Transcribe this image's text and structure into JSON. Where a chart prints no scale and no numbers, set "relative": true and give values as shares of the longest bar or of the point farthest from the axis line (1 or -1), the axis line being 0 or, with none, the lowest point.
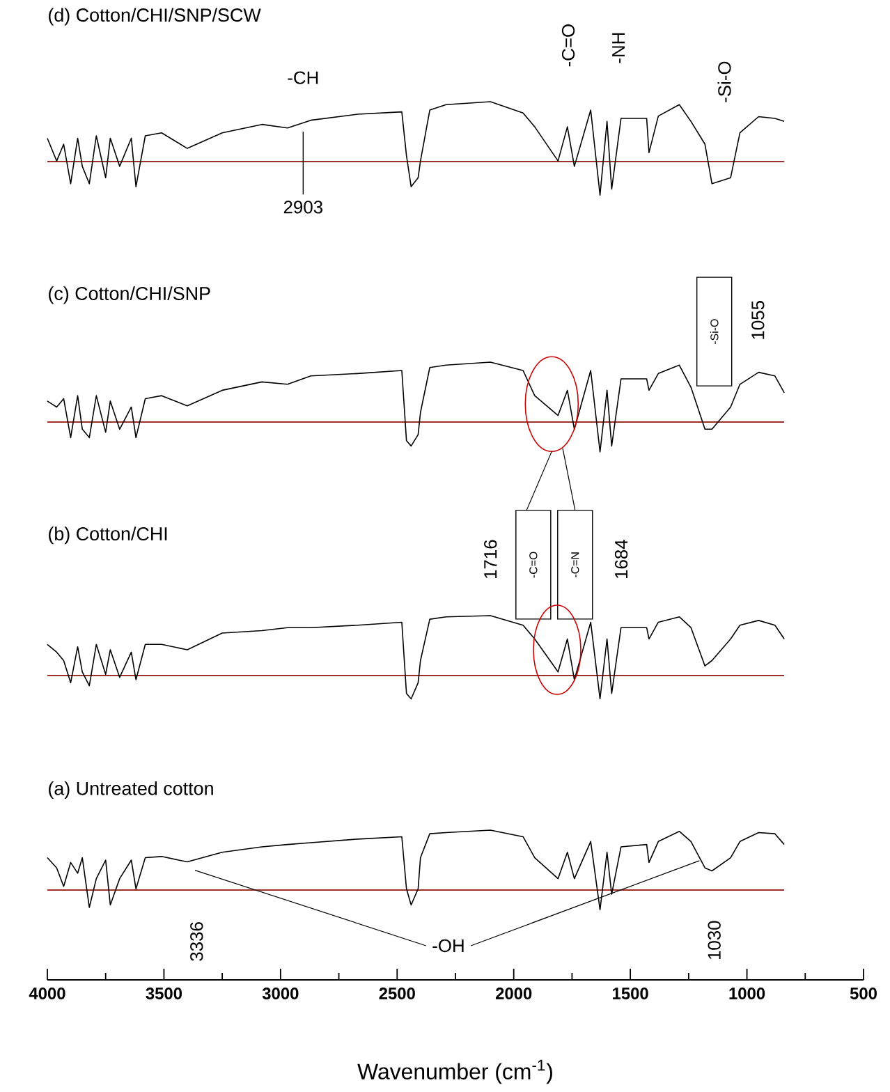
{
  "chart_data": [
    {
      "type": "line",
      "title": "(d) Cotton/CHI/SNP/SCW",
      "relative": true,
      "xlim": [
        4000,
        500
      ],
      "tick_labels": false,
      "color": "#000000",
      "x": [
        4000,
        3960,
        3930,
        3900,
        3870,
        3850,
        3820,
        3790,
        3750,
        3730,
        3690,
        3640,
        3620,
        3580,
        3510,
        3400,
        3250,
        3080,
        2970,
        2870,
        2670,
        2480,
        2460,
        2440,
        2410,
        2400,
        2360,
        2290,
        2100,
        1960,
        1910,
        1810,
        1770,
        1740,
        1670,
        1630,
        1600,
        1580,
        1540,
        1430,
        1420,
        1380,
        1290,
        1240,
        1180,
        1150,
        1070,
        1030,
        950,
        880,
        840
      ],
      "values": [
        0.39,
        0.01,
        0.29,
        -0.37,
        0.39,
        -0.08,
        -0.37,
        0.43,
        -0.27,
        0.39,
        -0.08,
        0.39,
        -0.42,
        0.43,
        0.48,
        0.22,
        0.48,
        0.62,
        0.56,
        0.69,
        0.79,
        0.83,
        0.1,
        -0.42,
        -0.27,
        0.01,
        0.86,
        0.95,
        1.0,
        0.81,
        0.58,
        0.01,
        0.58,
        -0.08,
        0.86,
        -0.56,
        0.67,
        -0.46,
        0.72,
        0.72,
        0.15,
        0.76,
        0.95,
        0.67,
        0.29,
        -0.37,
        -0.27,
        0.48,
        0.75,
        0.72,
        0.67
      ],
      "ref_lines": [
        {
          "axis": "y",
          "value": 0,
          "color": "#a0302c"
        }
      ],
      "annotations": [
        "-CH",
        "2903",
        "-C=O",
        "-NH",
        "-Si-O"
      ]
    },
    {
      "type": "line",
      "title": "(c) Cotton/CHI/SNP",
      "relative": true,
      "xlim": [
        4000,
        500
      ],
      "tick_labels": false,
      "color": "#000000",
      "x": [
        4000,
        3960,
        3930,
        3900,
        3870,
        3850,
        3820,
        3790,
        3750,
        3730,
        3690,
        3640,
        3620,
        3580,
        3510,
        3400,
        3250,
        3080,
        2970,
        2870,
        2670,
        2480,
        2460,
        2440,
        2410,
        2400,
        2360,
        2290,
        2100,
        1960,
        1910,
        1810,
        1770,
        1740,
        1670,
        1630,
        1600,
        1580,
        1540,
        1430,
        1420,
        1380,
        1290,
        1240,
        1180,
        1150,
        1070,
        1030,
        950,
        880,
        840
      ],
      "values": [
        0.35,
        0.25,
        0.39,
        -0.26,
        0.44,
        -0.12,
        -0.26,
        0.44,
        -0.17,
        0.35,
        -0.12,
        0.25,
        -0.26,
        0.39,
        0.44,
        0.27,
        0.53,
        0.67,
        0.63,
        0.77,
        0.81,
        0.86,
        -0.31,
        -0.4,
        -0.21,
        0.16,
        0.91,
        0.95,
        1.0,
        0.86,
        0.44,
        0.11,
        0.53,
        -0.12,
        0.86,
        -0.5,
        0.53,
        -0.4,
        0.72,
        0.72,
        0.53,
        0.81,
        0.95,
        0.58,
        -0.12,
        -0.12,
        0.25,
        0.63,
        0.83,
        0.77,
        0.49
      ],
      "ref_lines": [
        {
          "axis": "y",
          "value": 0,
          "color": "#a0302c"
        }
      ],
      "annotations": [
        "-Si-O",
        "1055"
      ]
    },
    {
      "type": "line",
      "title": "(b) Cotton/CHI",
      "relative": true,
      "xlim": [
        4000,
        500
      ],
      "tick_labels": false,
      "color": "#000000",
      "x": [
        4000,
        3960,
        3930,
        3900,
        3870,
        3850,
        3820,
        3790,
        3750,
        3730,
        3690,
        3640,
        3620,
        3580,
        3510,
        3400,
        3250,
        3080,
        2970,
        2870,
        2670,
        2480,
        2460,
        2440,
        2410,
        2400,
        2360,
        2290,
        2100,
        1960,
        1910,
        1810,
        1770,
        1740,
        1670,
        1630,
        1600,
        1580,
        1540,
        1430,
        1420,
        1380,
        1290,
        1240,
        1180,
        1150,
        1070,
        1030,
        950,
        880,
        840
      ],
      "values": [
        0.52,
        0.39,
        0.25,
        -0.12,
        0.48,
        0.06,
        -0.17,
        0.52,
        0.02,
        0.43,
        -0.03,
        0.39,
        -0.07,
        0.52,
        0.52,
        0.43,
        0.71,
        0.75,
        0.8,
        0.8,
        0.84,
        0.89,
        -0.3,
        -0.39,
        -0.12,
        0.25,
        0.94,
        0.98,
        1.0,
        0.84,
        0.61,
        0.06,
        0.61,
        -0.07,
        0.89,
        -0.39,
        0.61,
        -0.3,
        0.8,
        0.8,
        0.61,
        0.89,
        0.98,
        0.8,
        0.16,
        0.25,
        0.61,
        0.84,
        0.92,
        0.84,
        0.61
      ],
      "ref_lines": [
        {
          "axis": "y",
          "value": 0,
          "color": "#a0302c"
        }
      ],
      "annotations": [
        "1716",
        "-C=O",
        "-C=N",
        "1684"
      ]
    },
    {
      "type": "line",
      "title": "(a) Untreated cotton",
      "relative": true,
      "xlim": [
        4000,
        500
      ],
      "tick_labels": "x",
      "color": "#000000",
      "xlabel": "Wavenumber (cm$^{-1}$)",
      "xticks": [
        4000,
        3500,
        3000,
        2500,
        2000,
        1500,
        1000,
        500
      ],
      "x": [
        4000,
        3960,
        3930,
        3900,
        3870,
        3850,
        3820,
        3790,
        3750,
        3730,
        3690,
        3640,
        3620,
        3580,
        3510,
        3400,
        3250,
        3080,
        2970,
        2870,
        2670,
        2480,
        2460,
        2440,
        2410,
        2400,
        2360,
        2290,
        2100,
        1960,
        1910,
        1810,
        1770,
        1740,
        1670,
        1630,
        1600,
        1580,
        1540,
        1430,
        1420,
        1380,
        1290,
        1240,
        1180,
        1150,
        1070,
        1030,
        950,
        880,
        840
      ],
      "values": [
        0.54,
        0.37,
        0.06,
        0.46,
        0.28,
        0.54,
        -0.29,
        0.19,
        0.5,
        -0.25,
        0.19,
        0.5,
        0.02,
        0.54,
        0.56,
        0.47,
        0.63,
        0.72,
        0.76,
        0.79,
        0.85,
        0.89,
        0.02,
        -0.25,
        0.02,
        0.54,
        0.94,
        0.96,
        1.0,
        0.89,
        0.54,
        0.19,
        0.63,
        0.19,
        0.81,
        -0.33,
        0.63,
        -0.07,
        0.72,
        0.76,
        0.46,
        0.81,
        0.98,
        0.81,
        0.37,
        0.32,
        0.54,
        0.81,
        0.96,
        0.94,
        0.76
      ],
      "ref_lines": [
        {
          "axis": "y",
          "value": 0,
          "color": "#a0302c"
        }
      ],
      "annotations": [
        "3336",
        "-OH",
        "1030"
      ]
    }
  ]
}
